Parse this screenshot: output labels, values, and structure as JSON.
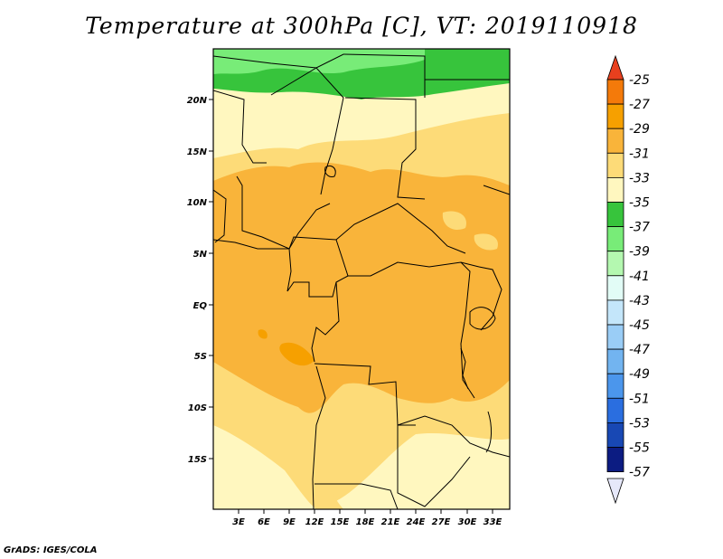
{
  "title": "Temperature at 300hPa [C], VT: 2019110918",
  "credit": "GrADS: IGES/COLA",
  "axes": {
    "x_ticks": [
      "3E",
      "6E",
      "9E",
      "12E",
      "15E",
      "18E",
      "21E",
      "24E",
      "27E",
      "30E",
      "33E"
    ],
    "y_ticks": [
      "20N",
      "15N",
      "10N",
      "5N",
      "EQ",
      "5S",
      "10S",
      "15S"
    ]
  },
  "colorbar": {
    "labels": [
      "-25",
      "-27",
      "-29",
      "-31",
      "-33",
      "-35",
      "-37",
      "-39",
      "-41",
      "-43",
      "-45",
      "-47",
      "-49",
      "-51",
      "-53",
      "-55",
      "-57"
    ],
    "colors": [
      "#e8401e",
      "#f47a0a",
      "#f6a000",
      "#f9b43a",
      "#fddb78",
      "#fff7bf",
      "#37c43c",
      "#78ec78",
      "#b4f8b0",
      "#e2fcf6",
      "#c4e6fa",
      "#9acdf6",
      "#72b4f0",
      "#4b96ec",
      "#2a6ee0",
      "#1848b4",
      "#0c1c82",
      "#e6e8fa"
    ]
  },
  "palette": {
    "t33": "#fff7bf",
    "t31": "#fddb78",
    "t29": "#f9b43a",
    "t27": "#f6a000",
    "t37": "#37c43c",
    "t39": "#78ec78"
  }
}
